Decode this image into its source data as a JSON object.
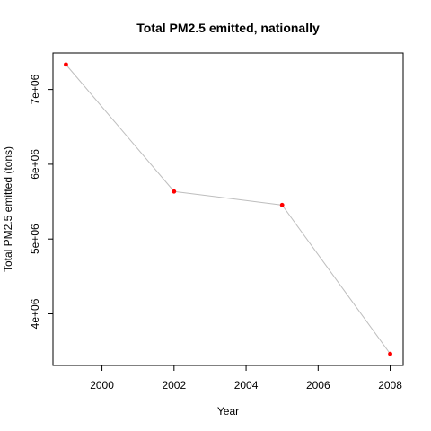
{
  "chart_data": {
    "type": "line",
    "title": "Total PM2.5 emitted, nationally",
    "xlabel": "Year",
    "ylabel": "Total PM2.5 emitted (tons)",
    "x": [
      1999,
      2002,
      2005,
      2008
    ],
    "y": [
      7332967,
      5635780,
      5454703,
      3464206
    ],
    "xlim": [
      1998.64,
      2008.36
    ],
    "ylim": [
      3309532,
      7487641
    ],
    "xticks": [
      2000,
      2002,
      2004,
      2006,
      2008
    ],
    "xtick_labels": [
      "2000",
      "2002",
      "2004",
      "2006",
      "2008"
    ],
    "yticks": [
      4000000,
      5000000,
      6000000,
      7000000
    ],
    "ytick_labels": [
      "4e+06",
      "5e+06",
      "6e+06",
      "7e+06"
    ],
    "line_color": "#bebebe",
    "point_color": "#ff0000",
    "grid": false,
    "legend": "none"
  }
}
